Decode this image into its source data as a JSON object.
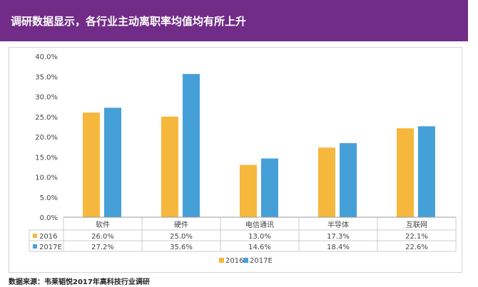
{
  "header": {
    "title": "调研数据显示，各行业主动离职率均值均有所上升"
  },
  "chart_data": {
    "type": "bar",
    "categories": [
      "软件",
      "硬件",
      "电信通讯",
      "半导体",
      "互联网"
    ],
    "series": [
      {
        "name": "2016",
        "values": [
          26.0,
          25.0,
          13.0,
          17.3,
          22.1
        ],
        "labels": [
          "26.0%",
          "25.0%",
          "13.0%",
          "17.3%",
          "22.1%"
        ],
        "color": "#F5B83D"
      },
      {
        "name": "2017E",
        "values": [
          27.2,
          35.6,
          14.6,
          18.4,
          22.6
        ],
        "labels": [
          "27.2%",
          "35.6%",
          "14.6%",
          "18.4%",
          "22.6%"
        ],
        "color": "#46A0D8"
      }
    ],
    "ytick_values": [
      0,
      5,
      10,
      15,
      20,
      25,
      30,
      35,
      40
    ],
    "ytick_labels": [
      "0.0%",
      "5.0%",
      "10.0%",
      "15.0%",
      "20.0%",
      "25.0%",
      "30.0%",
      "35.0%",
      "40.0%"
    ],
    "ylim": [
      0,
      40
    ],
    "grid": false,
    "legend": "bottom",
    "data_table": true
  },
  "source": {
    "text": "数据来源：韦莱韬悦2017年高科技行业调研"
  }
}
